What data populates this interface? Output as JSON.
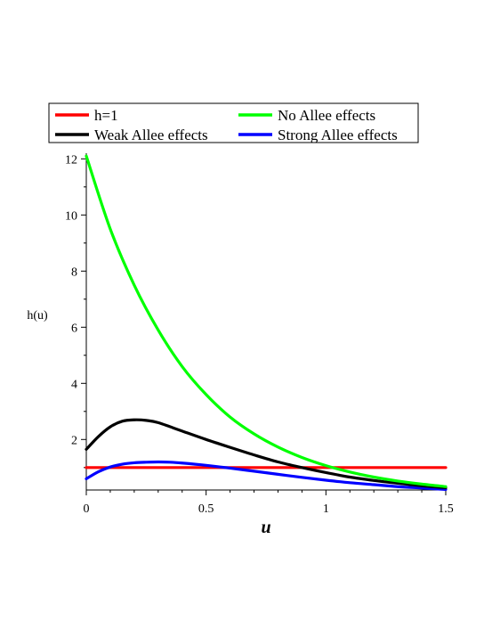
{
  "chart_data": {
    "type": "line",
    "xlabel": "u",
    "ylabel": "h(u)",
    "xlim": [
      0,
      1.5
    ],
    "ylim": [
      0.2,
      12.2
    ],
    "xticks": [
      0,
      0.5,
      1,
      1.5
    ],
    "xtick_labels": [
      "0",
      "0.5",
      "1",
      "1.5"
    ],
    "yticks": [
      2,
      4,
      6,
      8,
      10,
      12
    ],
    "ytick_labels": [
      "2",
      "4",
      "6",
      "8",
      "10",
      "12"
    ],
    "grid": false,
    "legend_position": "top",
    "series": [
      {
        "name": "h=1",
        "color": "#ff0000",
        "x": [
          0,
          0.5,
          1.0,
          1.5
        ],
        "y": [
          1,
          1,
          1,
          1
        ]
      },
      {
        "name": "No Allee effects",
        "color": "#00ff00",
        "x": [
          0,
          0.1,
          0.2,
          0.3,
          0.4,
          0.5,
          0.6,
          0.7,
          0.8,
          0.9,
          1.0,
          1.1,
          1.2,
          1.3,
          1.4,
          1.5
        ],
        "y": [
          12.1,
          9.5,
          7.5,
          5.9,
          4.6,
          3.6,
          2.8,
          2.2,
          1.73,
          1.36,
          1.07,
          0.84,
          0.66,
          0.52,
          0.41,
          0.32
        ]
      },
      {
        "name": "Weak Allee effects",
        "color": "#000000",
        "x": [
          0,
          0.05,
          0.1,
          0.15,
          0.2,
          0.25,
          0.3,
          0.4,
          0.5,
          0.6,
          0.7,
          0.8,
          0.9,
          1.0,
          1.1,
          1.2,
          1.3,
          1.4,
          1.5
        ],
        "y": [
          1.65,
          2.1,
          2.45,
          2.65,
          2.7,
          2.68,
          2.6,
          2.3,
          2.0,
          1.72,
          1.45,
          1.2,
          1.0,
          0.82,
          0.66,
          0.54,
          0.44,
          0.35,
          0.28
        ]
      },
      {
        "name": "Strong Allee effects",
        "color": "#0000ff",
        "x": [
          0,
          0.05,
          0.1,
          0.15,
          0.2,
          0.25,
          0.3,
          0.35,
          0.4,
          0.5,
          0.6,
          0.7,
          0.8,
          0.9,
          1.0,
          1.1,
          1.2,
          1.3,
          1.4,
          1.5
        ],
        "y": [
          0.6,
          0.85,
          1.02,
          1.12,
          1.17,
          1.19,
          1.2,
          1.19,
          1.16,
          1.08,
          0.98,
          0.87,
          0.76,
          0.65,
          0.55,
          0.46,
          0.39,
          0.32,
          0.27,
          0.22
        ]
      }
    ]
  }
}
